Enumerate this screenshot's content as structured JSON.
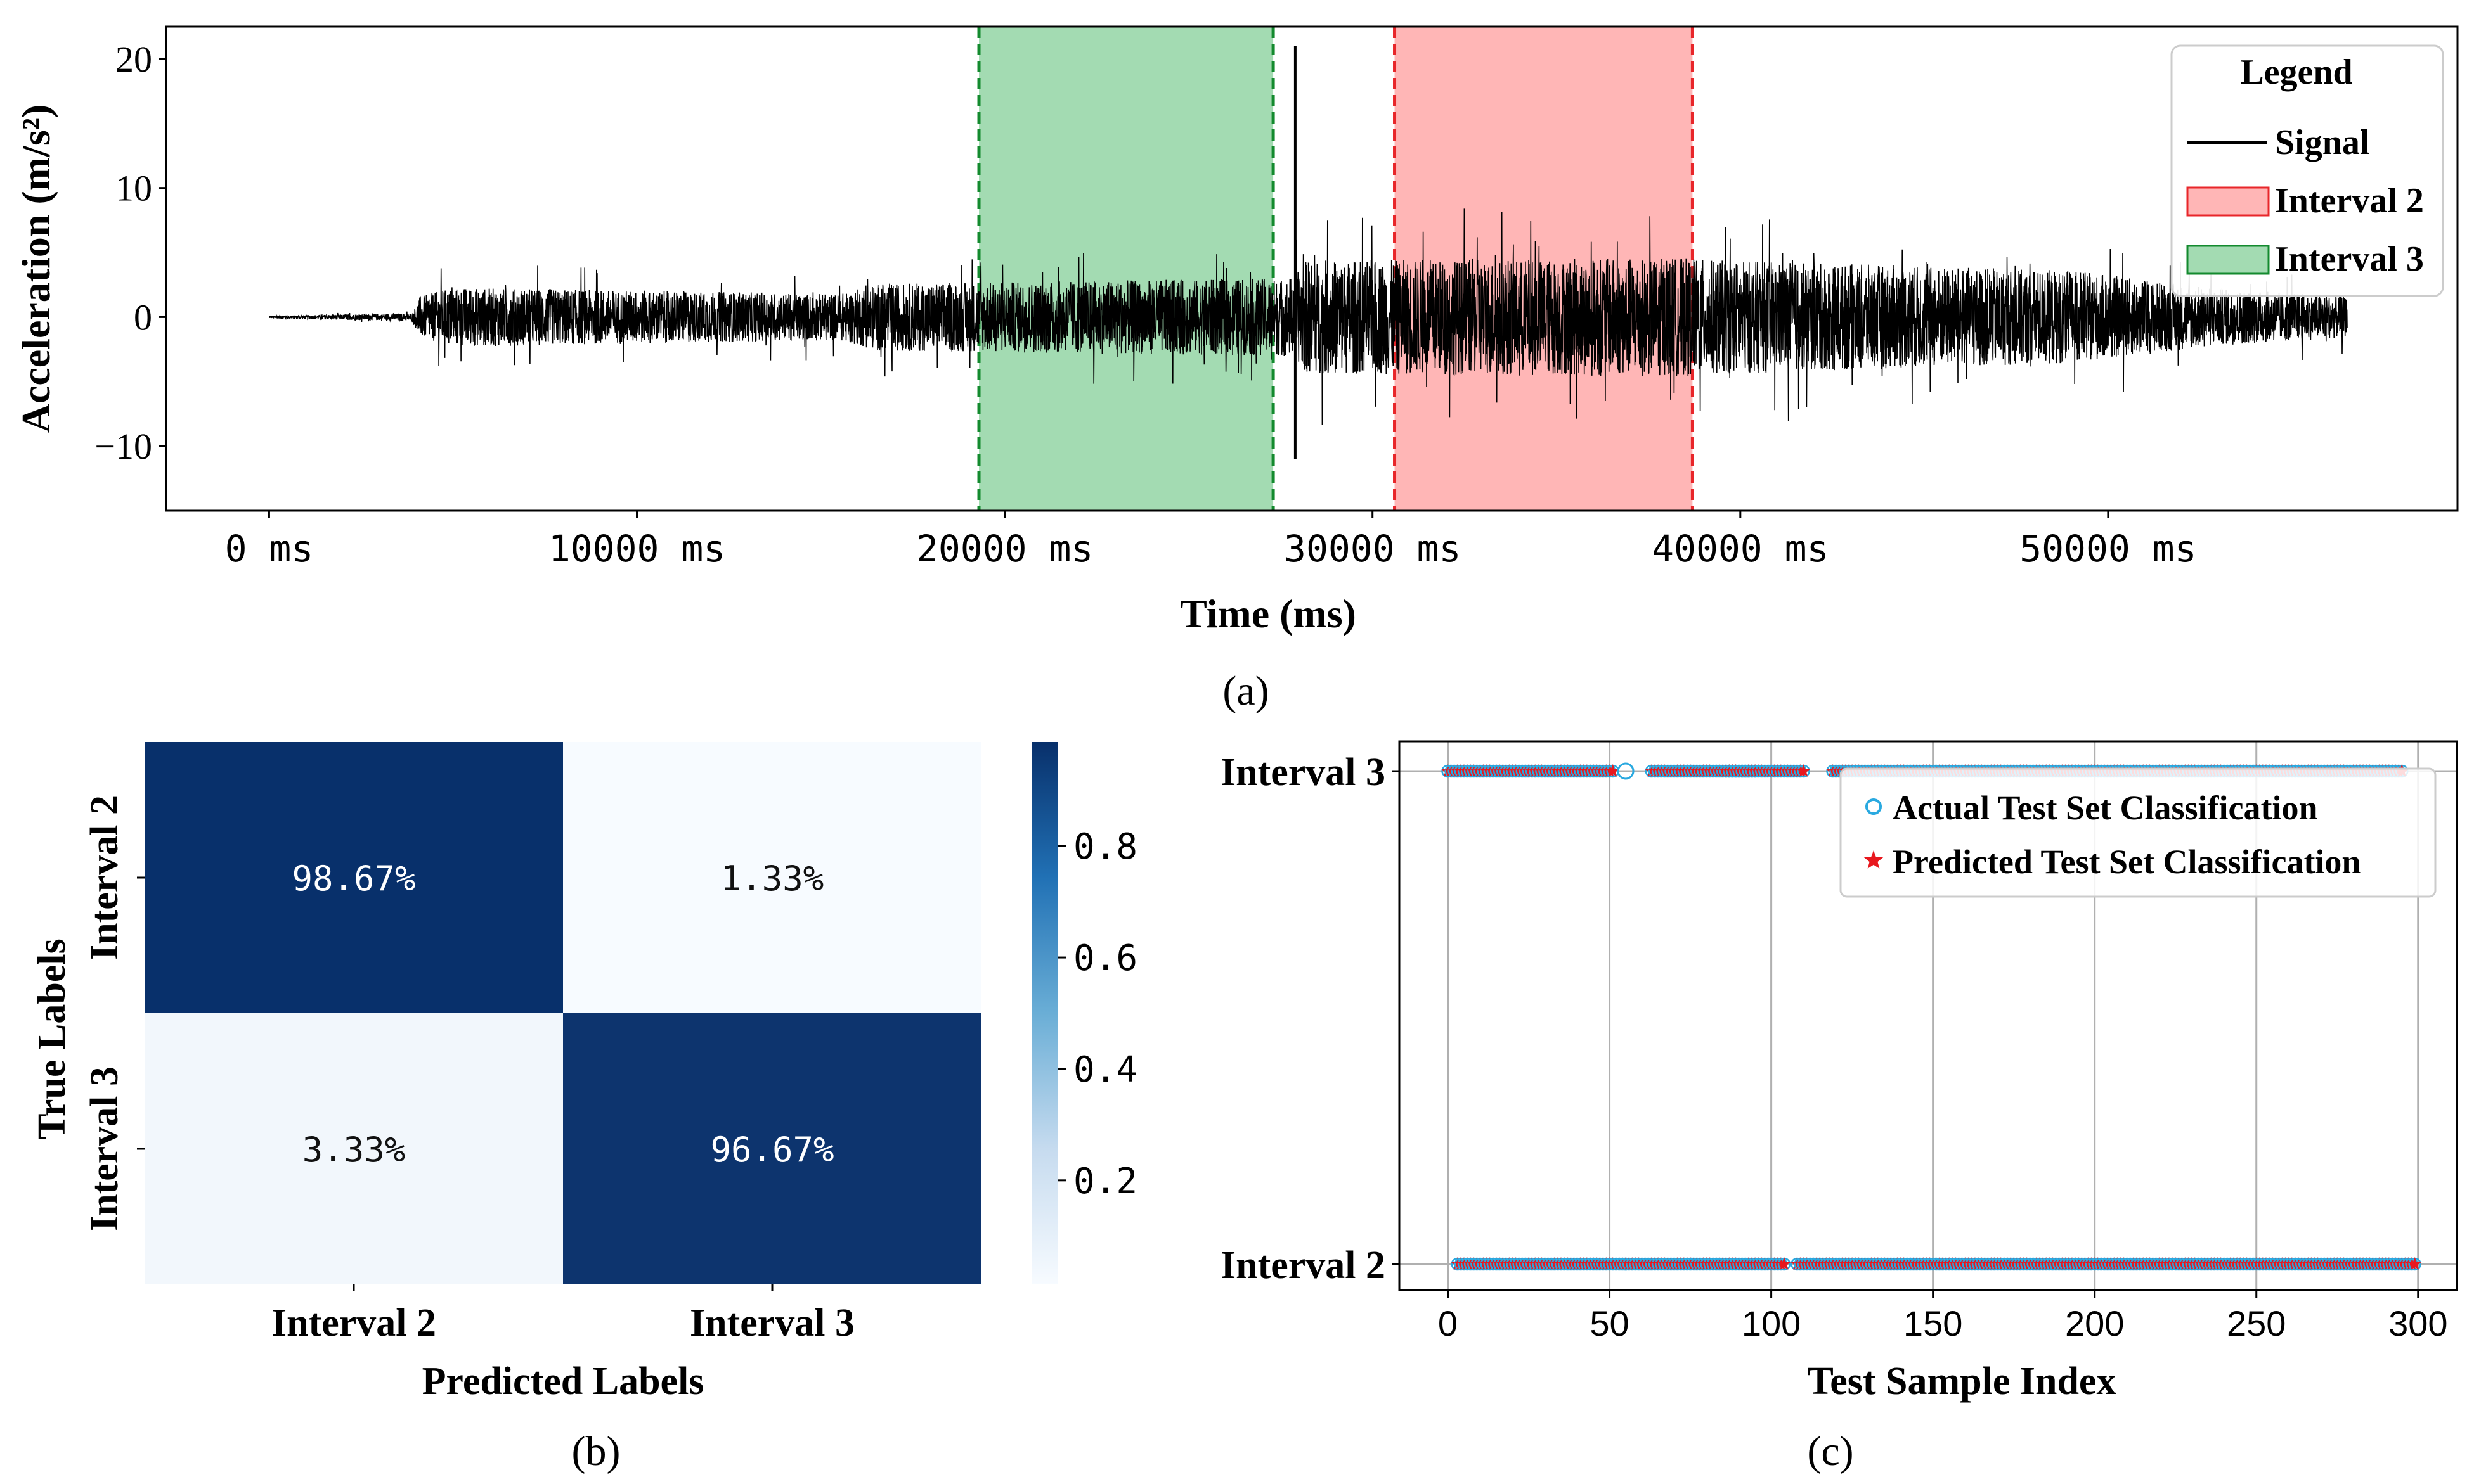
{
  "chart_data": [
    {
      "panel": "a",
      "type": "line",
      "caption": "(a)",
      "xlabel": "Time (ms)",
      "ylabel": "Acceleration (m/s²)",
      "xlim": [
        -2800,
        59500
      ],
      "ylim": [
        -15,
        22.5
      ],
      "xticks": [
        0,
        10000,
        20000,
        30000,
        40000,
        50000
      ],
      "xtick_labels": [
        "0 ms",
        "10000 ms",
        "20000 ms",
        "30000 ms",
        "40000 ms",
        "50000 ms"
      ],
      "yticks": [
        20,
        10,
        0,
        -10
      ],
      "ytick_labels": [
        "20",
        "10",
        "0",
        "−10"
      ],
      "signal_envelope": [
        {
          "t": 0,
          "amp": 0.1
        },
        {
          "t": 3900,
          "amp": 0.3
        },
        {
          "t": 4100,
          "amp": 1.6
        },
        {
          "t": 5000,
          "amp": 2.3
        },
        {
          "t": 15500,
          "amp": 1.8
        },
        {
          "t": 16500,
          "amp": 2.6
        },
        {
          "t": 27500,
          "amp": 3.0
        },
        {
          "t": 27900,
          "amp": 3.2
        },
        {
          "t": 28200,
          "amp": 4.4
        },
        {
          "t": 38500,
          "amp": 4.6
        },
        {
          "t": 39500,
          "amp": 4.4
        },
        {
          "t": 49000,
          "amp": 3.6
        },
        {
          "t": 53000,
          "amp": 2.2
        },
        {
          "t": 56500,
          "amp": 1.6
        }
      ],
      "spike": {
        "t": 27900,
        "min": -11,
        "max": 21
      },
      "intervals": [
        {
          "name": "Interval 3",
          "start": 19300,
          "end": 27300,
          "fill": "#a3dbb2",
          "edge": "#138a2e"
        },
        {
          "name": "Interval 2",
          "start": 30600,
          "end": 38700,
          "fill": "#ffb6b6",
          "edge": "#e8262a"
        }
      ],
      "legend": {
        "title": "Legend",
        "placement": "top-right",
        "items": [
          {
            "label": "Signal",
            "kind": "line",
            "color": "#000000"
          },
          {
            "label": "Interval 2",
            "kind": "patch",
            "fill": "#ffb6b6",
            "edge": "#e8262a"
          },
          {
            "label": "Interval 3",
            "kind": "patch",
            "fill": "#a3dbb2",
            "edge": "#138a2e"
          }
        ]
      }
    },
    {
      "panel": "b",
      "type": "heatmap",
      "caption": "(b)",
      "xlabel": "Predicted Labels",
      "ylabel": "True Labels",
      "x_categories": [
        "Interval 2",
        "Interval 3"
      ],
      "y_categories": [
        "Interval 2",
        "Interval 3"
      ],
      "values": [
        [
          0.9867,
          0.0133
        ],
        [
          0.0333,
          0.9667
        ]
      ],
      "cell_labels": [
        [
          "98.67%",
          "1.33%"
        ],
        [
          "3.33%",
          "96.67%"
        ]
      ],
      "colormap": "Blues",
      "colorbar_ticks": [
        0.8,
        0.6,
        0.4,
        0.2
      ],
      "colorbar_labels": [
        "0.8",
        "0.6",
        "0.4",
        "0.2"
      ],
      "colorbar_range": [
        0.0133,
        0.9867
      ]
    },
    {
      "panel": "c",
      "type": "scatter",
      "caption": "(c)",
      "xlabel": "Test Sample Index",
      "ylabel": "",
      "xlim": [
        -15,
        312
      ],
      "xticks": [
        0,
        50,
        100,
        150,
        200,
        250,
        300
      ],
      "xtick_labels": [
        "0",
        "50",
        "100",
        "150",
        "200",
        "250",
        "300"
      ],
      "y_categories": [
        "Interval 2",
        "Interval 3"
      ],
      "grid": true,
      "series": [
        {
          "name": "Actual Test Set Classification",
          "marker": "circle-open",
          "color": "#29a9e0"
        },
        {
          "name": "Predicted Test Set Classification",
          "marker": "star",
          "color": "#e8181e"
        }
      ],
      "interval3_runs": [
        [
          0,
          51
        ],
        [
          63,
          95
        ],
        [
          86,
          110
        ],
        [
          119,
          295
        ]
      ],
      "interval3_outlier": 55,
      "interval2_runs": [
        [
          3,
          55
        ],
        [
          55,
          104
        ],
        [
          108,
          299
        ]
      ],
      "legend": {
        "placement": "top-right"
      }
    }
  ]
}
